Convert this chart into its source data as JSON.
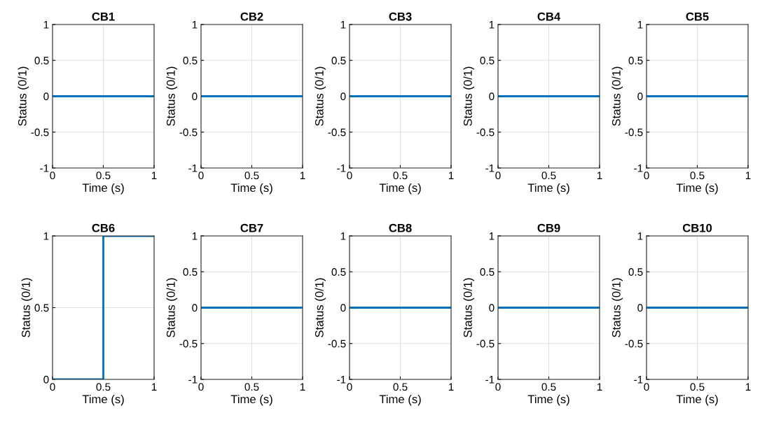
{
  "chart_data": [
    {
      "type": "line",
      "title": "CB1",
      "xlabel": "Time (s)",
      "ylabel": "Status (0/1)",
      "x": [
        0,
        1
      ],
      "series": [
        {
          "color": "#0072bd",
          "values": [
            0,
            0
          ]
        }
      ],
      "xlim": [
        0,
        1
      ],
      "ylim": [
        -1,
        1
      ],
      "xticks": [
        0,
        0.5,
        1
      ],
      "yticks": [
        -1,
        -0.5,
        0,
        0.5,
        1
      ],
      "grid": true
    },
    {
      "type": "line",
      "title": "CB2",
      "xlabel": "Time (s)",
      "ylabel": "Status (0/1)",
      "x": [
        0,
        1
      ],
      "series": [
        {
          "color": "#0072bd",
          "values": [
            0,
            0
          ]
        }
      ],
      "xlim": [
        0,
        1
      ],
      "ylim": [
        -1,
        1
      ],
      "xticks": [
        0,
        0.5,
        1
      ],
      "yticks": [
        -1,
        -0.5,
        0,
        0.5,
        1
      ],
      "grid": true
    },
    {
      "type": "line",
      "title": "CB3",
      "xlabel": "Time (s)",
      "ylabel": "Status (0/1)",
      "x": [
        0,
        1
      ],
      "series": [
        {
          "color": "#0072bd",
          "values": [
            0,
            0
          ]
        }
      ],
      "xlim": [
        0,
        1
      ],
      "ylim": [
        -1,
        1
      ],
      "xticks": [
        0,
        0.5,
        1
      ],
      "yticks": [
        -1,
        -0.5,
        0,
        0.5,
        1
      ],
      "grid": true
    },
    {
      "type": "line",
      "title": "CB4",
      "xlabel": "Time (s)",
      "ylabel": "Status (0/1)",
      "x": [
        0,
        1
      ],
      "series": [
        {
          "color": "#0072bd",
          "values": [
            0,
            0
          ]
        }
      ],
      "xlim": [
        0,
        1
      ],
      "ylim": [
        -1,
        1
      ],
      "xticks": [
        0,
        0.5,
        1
      ],
      "yticks": [
        -1,
        -0.5,
        0,
        0.5,
        1
      ],
      "grid": true
    },
    {
      "type": "line",
      "title": "CB5",
      "xlabel": "Time (s)",
      "ylabel": "Status (0/1)",
      "x": [
        0,
        1
      ],
      "series": [
        {
          "color": "#0072bd",
          "values": [
            0,
            0
          ]
        }
      ],
      "xlim": [
        0,
        1
      ],
      "ylim": [
        -1,
        1
      ],
      "xticks": [
        0,
        0.5,
        1
      ],
      "yticks": [
        -1,
        -0.5,
        0,
        0.5,
        1
      ],
      "grid": true
    },
    {
      "type": "line",
      "title": "CB6",
      "xlabel": "Time (s)",
      "ylabel": "Status (0/1)",
      "x": [
        0,
        0.5,
        0.5,
        1
      ],
      "series": [
        {
          "color": "#0072bd",
          "values": [
            0,
            0,
            1,
            1
          ]
        }
      ],
      "xlim": [
        0,
        1
      ],
      "ylim": [
        0,
        1
      ],
      "xticks": [
        0,
        0.5,
        1
      ],
      "yticks": [
        0,
        0.5,
        1
      ],
      "grid": true
    },
    {
      "type": "line",
      "title": "CB7",
      "xlabel": "Time (s)",
      "ylabel": "Status (0/1)",
      "x": [
        0,
        1
      ],
      "series": [
        {
          "color": "#0072bd",
          "values": [
            0,
            0
          ]
        }
      ],
      "xlim": [
        0,
        1
      ],
      "ylim": [
        -1,
        1
      ],
      "xticks": [
        0,
        0.5,
        1
      ],
      "yticks": [
        -1,
        -0.5,
        0,
        0.5,
        1
      ],
      "grid": true
    },
    {
      "type": "line",
      "title": "CB8",
      "xlabel": "Time (s)",
      "ylabel": "Status (0/1)",
      "x": [
        0,
        1
      ],
      "series": [
        {
          "color": "#0072bd",
          "values": [
            0,
            0
          ]
        }
      ],
      "xlim": [
        0,
        1
      ],
      "ylim": [
        -1,
        1
      ],
      "xticks": [
        0,
        0.5,
        1
      ],
      "yticks": [
        -1,
        -0.5,
        0,
        0.5,
        1
      ],
      "grid": true
    },
    {
      "type": "line",
      "title": "CB9",
      "xlabel": "Time (s)",
      "ylabel": "Status (0/1)",
      "x": [
        0,
        1
      ],
      "series": [
        {
          "color": "#0072bd",
          "values": [
            0,
            0
          ]
        }
      ],
      "xlim": [
        0,
        1
      ],
      "ylim": [
        -1,
        1
      ],
      "xticks": [
        0,
        0.5,
        1
      ],
      "yticks": [
        -1,
        -0.5,
        0,
        0.5,
        1
      ],
      "grid": true
    },
    {
      "type": "line",
      "title": "CB10",
      "xlabel": "Time (s)",
      "ylabel": "Status (0/1)",
      "x": [
        0,
        1
      ],
      "series": [
        {
          "color": "#0072bd",
          "values": [
            0,
            0
          ]
        }
      ],
      "xlim": [
        0,
        1
      ],
      "ylim": [
        -1,
        1
      ],
      "xticks": [
        0,
        0.5,
        1
      ],
      "yticks": [
        -1,
        -0.5,
        0,
        0.5,
        1
      ],
      "grid": true
    }
  ]
}
